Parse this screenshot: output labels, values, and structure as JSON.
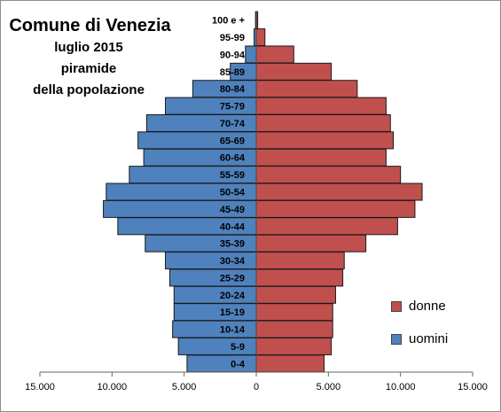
{
  "title": {
    "main": "Comune di Venezia",
    "line2": "luglio 2015",
    "line3": "piramide",
    "line4": "della popolazione"
  },
  "legend": {
    "donne": "donne",
    "uomini": "uomini"
  },
  "colors": {
    "donne": "#c0504d",
    "uomini": "#4f81bd",
    "border": "#1a1a1a"
  },
  "chart_data": {
    "type": "bar",
    "orientation": "horizontal",
    "layout": "population-pyramid",
    "categories": [
      "0-4",
      "5-9",
      "10-14",
      "15-19",
      "20-24",
      "25-29",
      "30-34",
      "35-39",
      "40-44",
      "45-49",
      "50-54",
      "55-59",
      "60-64",
      "65-69",
      "70-74",
      "75-79",
      "80-84",
      "85-89",
      "90-94",
      "95-99",
      "100 e +"
    ],
    "series": [
      {
        "name": "donne",
        "side": "right",
        "values": [
          4700,
          5200,
          5300,
          5300,
          5500,
          6000,
          6100,
          7600,
          9800,
          11000,
          11500,
          10000,
          9000,
          9500,
          9300,
          9000,
          7000,
          5200,
          2600,
          600,
          100
        ]
      },
      {
        "name": "uomini",
        "side": "left",
        "values": [
          4800,
          5400,
          5800,
          5700,
          5700,
          6000,
          6300,
          7700,
          9600,
          10600,
          10400,
          8800,
          7800,
          8200,
          7600,
          6300,
          4400,
          1800,
          750,
          150,
          50
        ]
      }
    ],
    "xlim": [
      -15000,
      15000
    ],
    "xticks": [
      -15000,
      -10000,
      -5000,
      0,
      5000,
      10000,
      15000
    ],
    "xtick_labels": [
      "15.000",
      "10.000",
      "5.000",
      "0",
      "5.000",
      "10.000",
      "15.000"
    ],
    "legend_position": "right"
  }
}
